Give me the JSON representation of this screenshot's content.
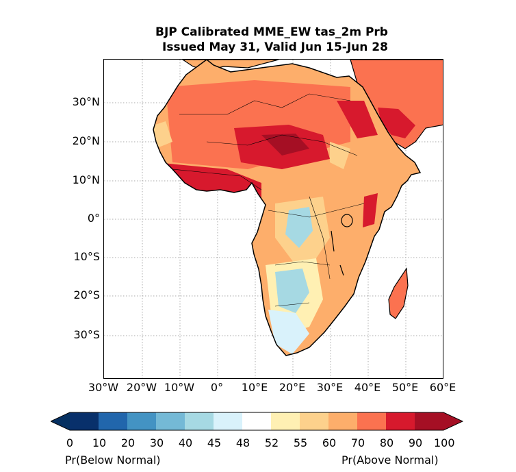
{
  "title": {
    "line1": "BJP Calibrated MME_EW tas_2m Prb",
    "line2": "Issued May 31, Valid Jun 15-Jun 28"
  },
  "map": {
    "region": "Africa",
    "projection": "lat-lon",
    "gridlines": "dotted",
    "lat_labels": [
      "30°N",
      "20°N",
      "10°N",
      "0°",
      "10°S",
      "20°S",
      "30°S"
    ],
    "lon_labels": [
      "30°W",
      "20°W",
      "10°W",
      "0°",
      "10°E",
      "20°E",
      "30°E",
      "40°E",
      "50°E",
      "60°E"
    ]
  },
  "colorbar": {
    "ticks": [
      "0",
      "10",
      "20",
      "30",
      "40",
      "45",
      "48",
      "52",
      "55",
      "60",
      "70",
      "80",
      "90",
      "100"
    ],
    "colors": [
      "#08306b",
      "#2166ac",
      "#4393c3",
      "#74b9d6",
      "#a6d9e3",
      "#d9f2fb",
      "#ffffff",
      "#fff0b3",
      "#fdd18c",
      "#fdae6b",
      "#fb7250",
      "#d7192d",
      "#a50f24"
    ],
    "under_color": "#053061",
    "over_color": "#a50f24",
    "left_label": "Pr(Below Normal)",
    "right_label": "Pr(Above Normal)"
  }
}
